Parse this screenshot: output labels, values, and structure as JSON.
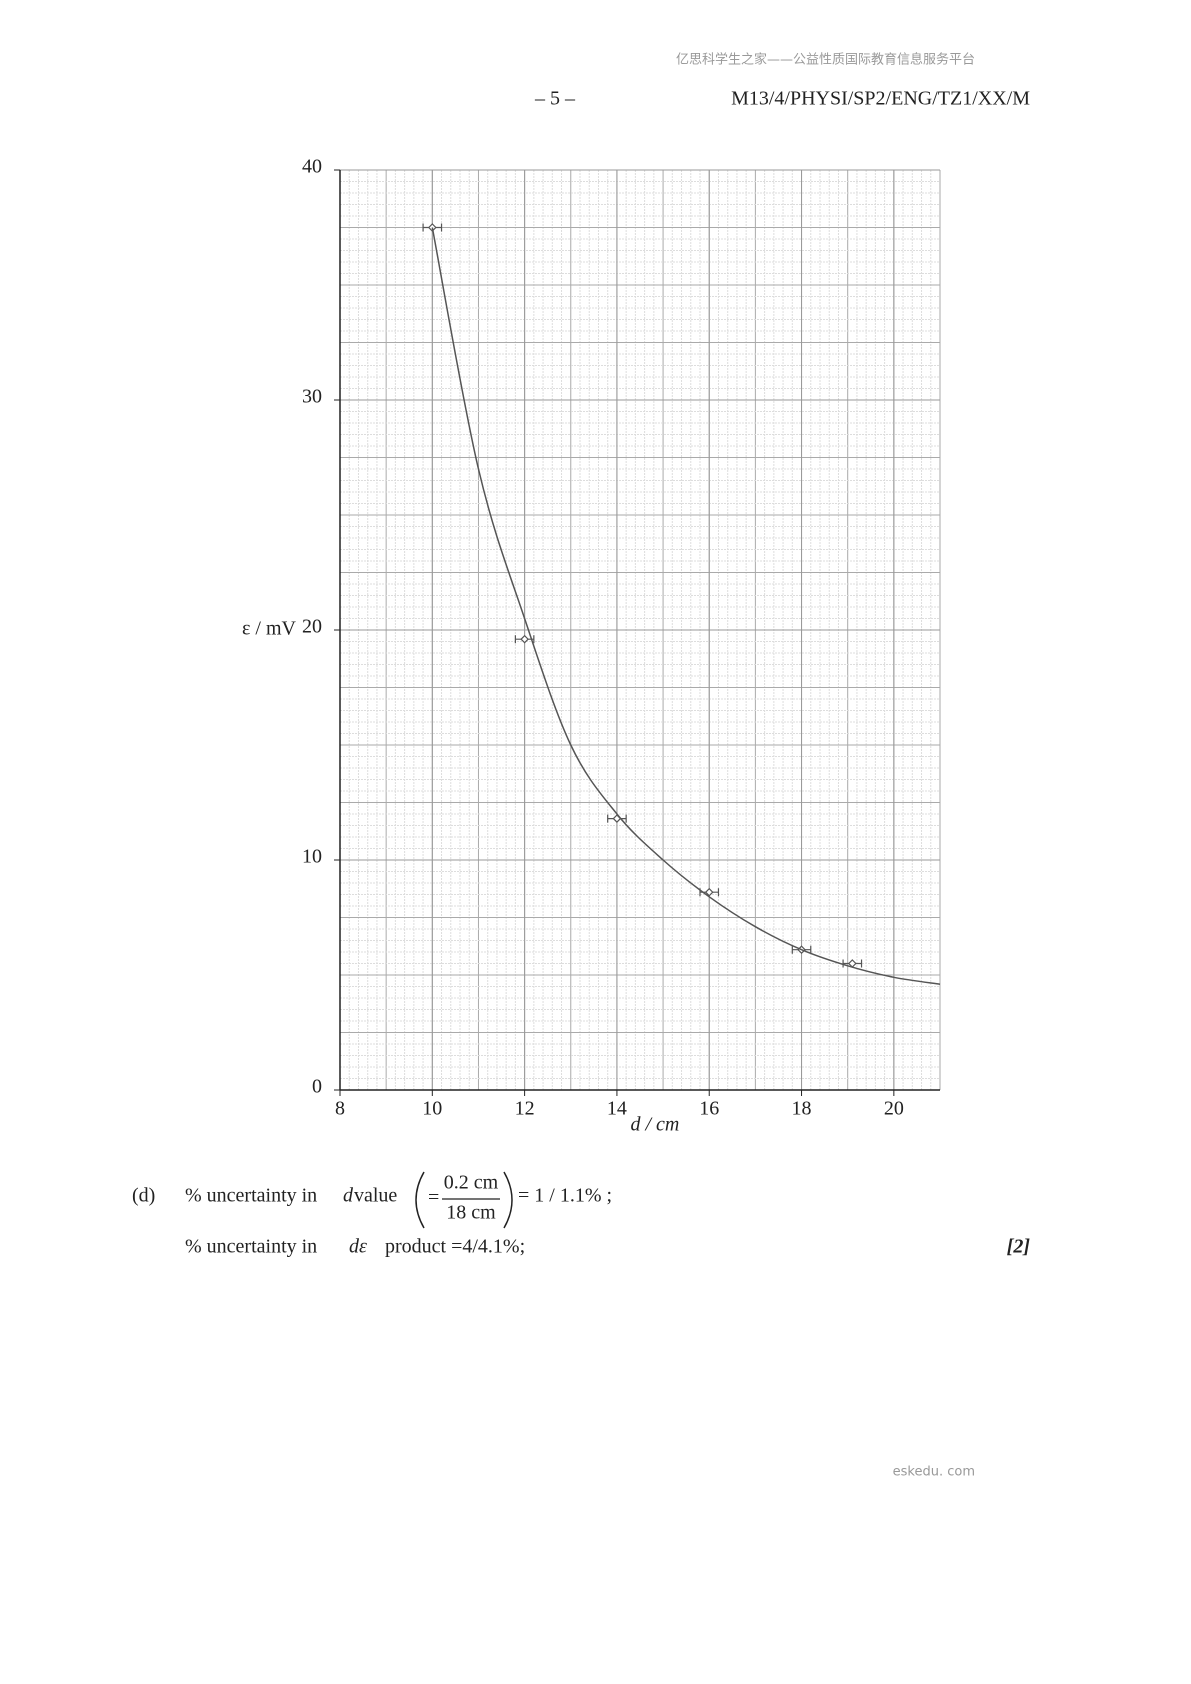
{
  "header": {
    "watermark": "亿思科学生之家——公益性质国际教育信息服务平台",
    "page": "– 5 –",
    "code": "M13/4/PHYSI/SP2/ENG/TZ1/XX/M"
  },
  "chart_data": {
    "type": "scatter",
    "xlabel": "d / cm",
    "ylabel": "ε / mV",
    "xlim": [
      8,
      21
    ],
    "ylim": [
      0,
      40
    ],
    "xticks": [
      8,
      10,
      12,
      14,
      16,
      18,
      20
    ],
    "yticks": [
      0,
      10,
      20,
      30,
      40
    ],
    "grid": true,
    "minor_grid": {
      "x": 0.2,
      "y": 0.5
    },
    "series": [
      {
        "x": [
          10,
          12,
          14,
          16,
          18,
          19.1
        ],
        "values": [
          37.5,
          19.6,
          11.8,
          8.6,
          6.1,
          5.5
        ],
        "xerr": [
          0.2,
          0.2,
          0.2,
          0.2,
          0.2,
          0.2
        ],
        "color": "#555555"
      },
      {
        "x": [
          10,
          11,
          12,
          13,
          14,
          15,
          16,
          17,
          18,
          19,
          20,
          21
        ],
        "values": [
          37.5,
          27,
          20.5,
          15,
          12,
          10,
          8.4,
          7.1,
          6.1,
          5.4,
          4.9,
          4.6
        ],
        "color": "#555555",
        "style": "curve"
      }
    ]
  },
  "answer": {
    "label": "(d)",
    "line1": {
      "text": "% uncertainty in",
      "var": "d",
      "rest": "value",
      "eq": "=",
      "numerator": "0.2 cm",
      "denominator": "18 cm",
      "result": "= 1 / 1.1% ;"
    },
    "line2": {
      "text": "% uncertainty in",
      "var": "dε",
      "rest": "product =4/4.1%;",
      "marks": "[2]"
    }
  },
  "footer": "eskedu. com"
}
